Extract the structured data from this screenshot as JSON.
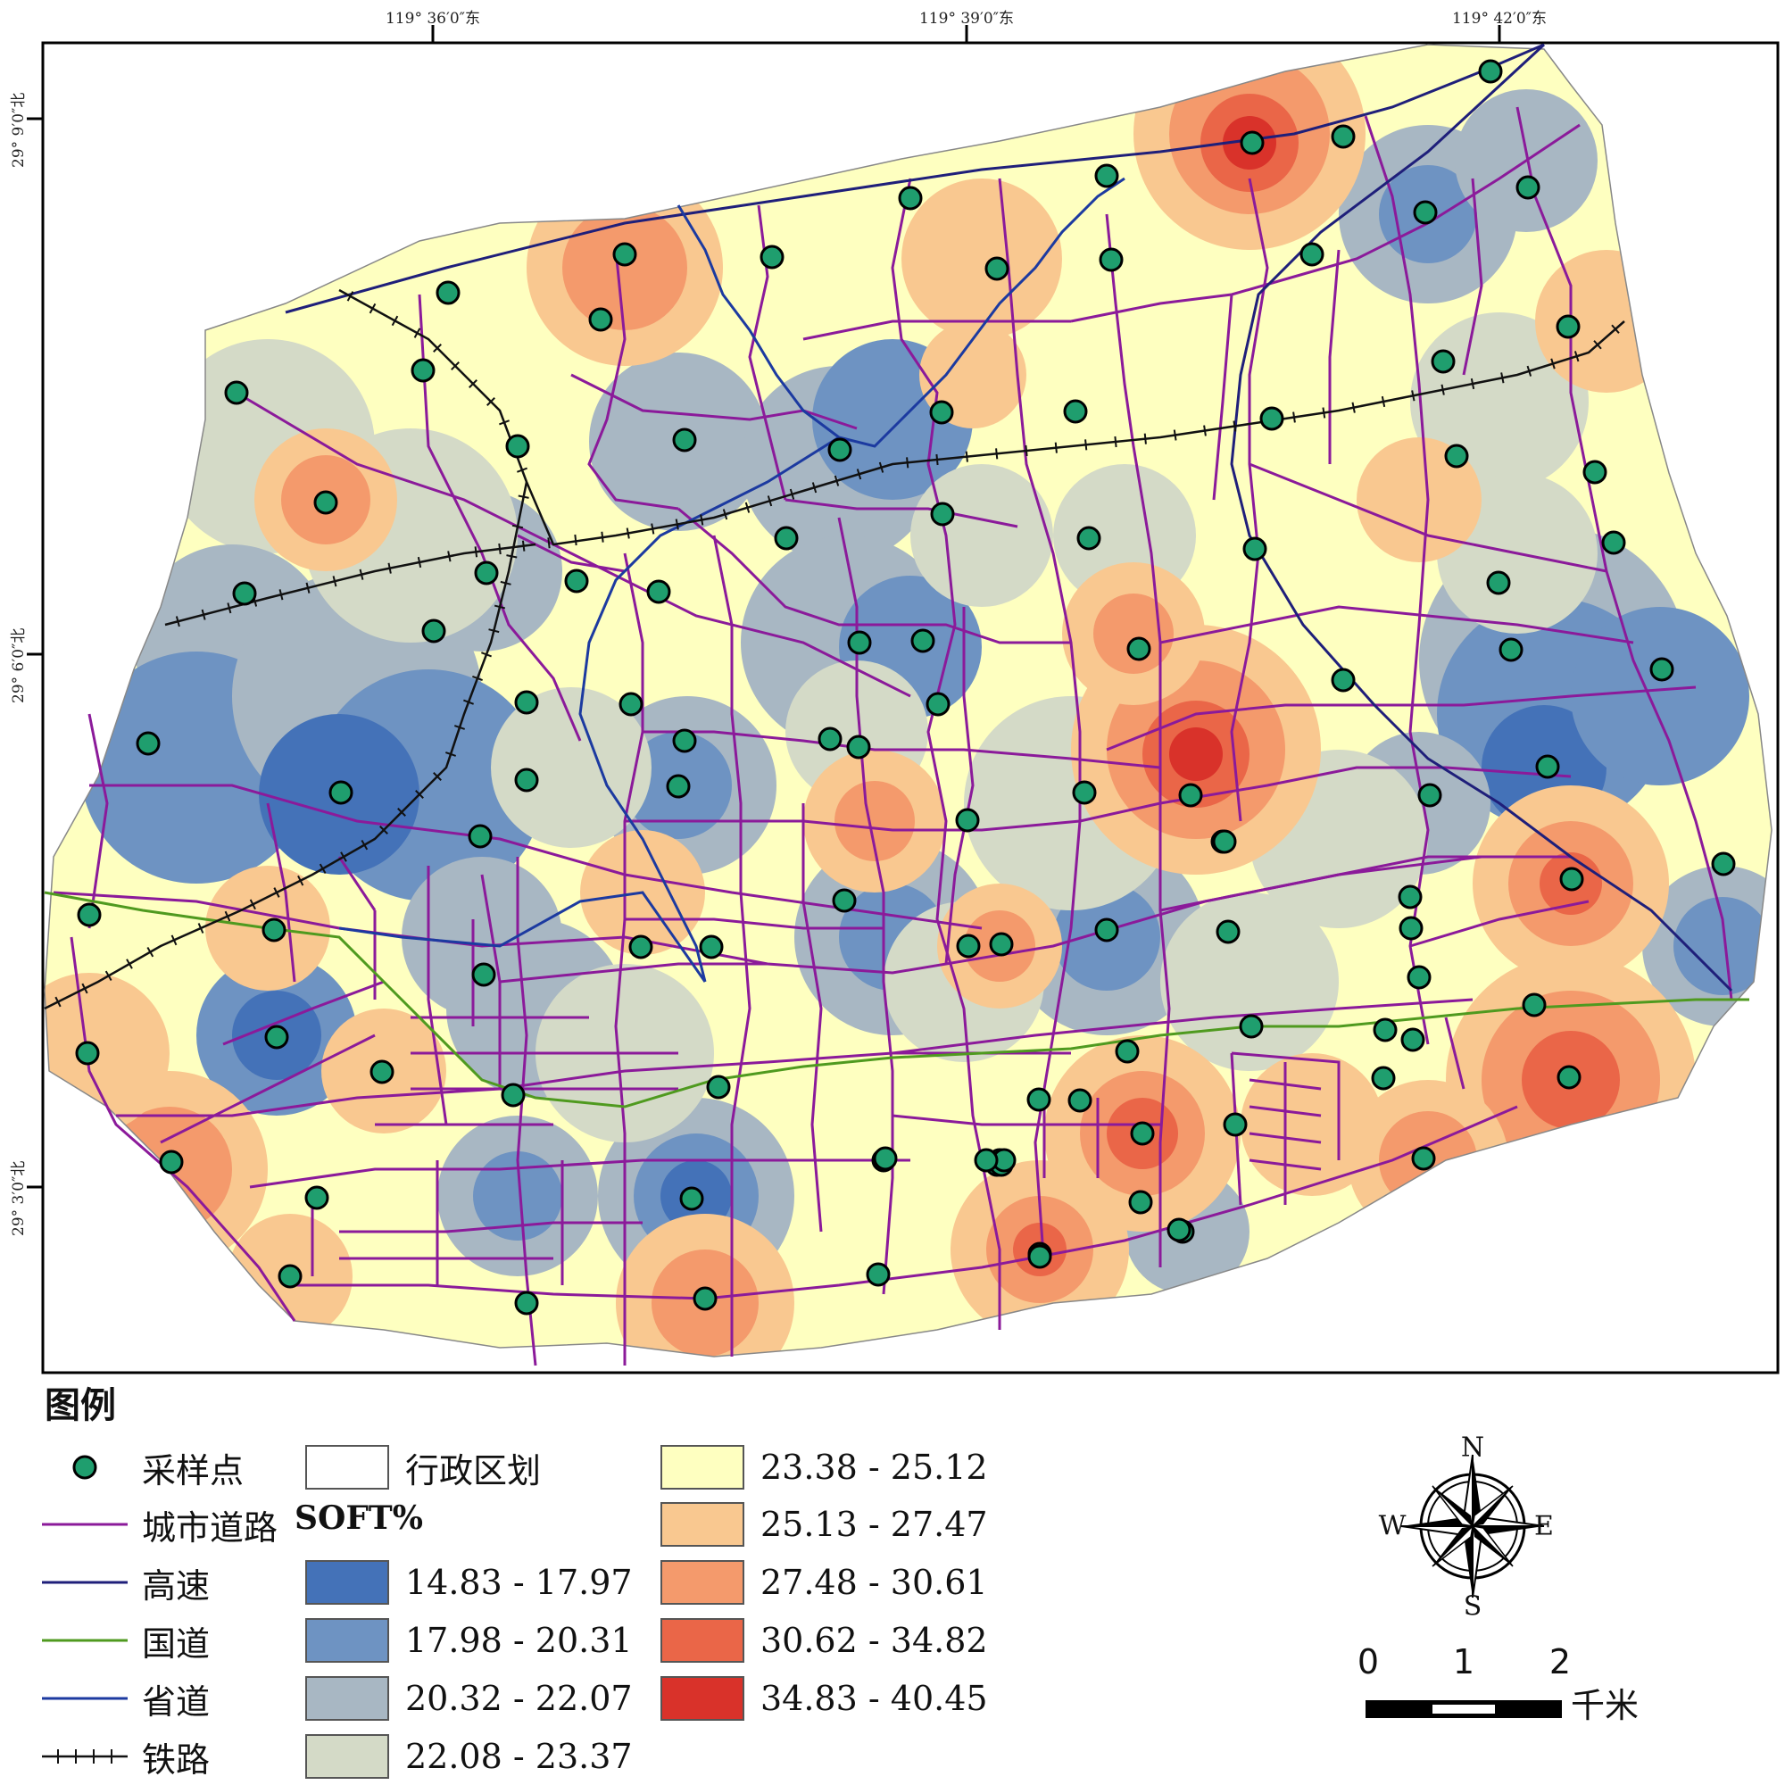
{
  "map": {
    "lon_labels": [
      "119° 36′0″东",
      "119° 39′0″东",
      "119° 42′0″东"
    ],
    "lat_labels": [
      "29° 9′0″北",
      "29° 6′0″北",
      "29° 3′0″北"
    ],
    "class_colors": [
      "#4472b8",
      "#6e93c2",
      "#a8b7c3",
      "#d4dac7",
      "#feffc0",
      "#f9c890",
      "#f49a6c",
      "#ea6648",
      "#d9322a"
    ],
    "road_colors": {
      "urban": "#8b1a9a",
      "highway": "#1f1f7a",
      "national": "#4f9a1f",
      "provincial": "#1c3aa0",
      "railway": "#111111"
    },
    "sample_point_color": "#1f9e6e"
  },
  "legend": {
    "title": "图例",
    "sample_points": "采样点",
    "admin_boundary": "行政区划",
    "urban_road": "城市道路",
    "highway": "高速",
    "national_road": "国道",
    "provincial_road": "省道",
    "railway": "铁路",
    "soft_title": "SOFT%",
    "classes": [
      "14.83 - 17.97",
      "17.98 - 20.31",
      "20.32 - 22.07",
      "22.08 - 23.37",
      "23.38 - 25.12",
      "25.13 - 27.47",
      "27.48 - 30.61",
      "30.62 - 34.82",
      "34.83 - 40.45"
    ]
  },
  "compass": {
    "n": "N",
    "s": "S",
    "e": "E",
    "w": "W"
  },
  "scale_bar": {
    "ticks": [
      "0",
      "1",
      "2"
    ],
    "unit": "千米"
  }
}
